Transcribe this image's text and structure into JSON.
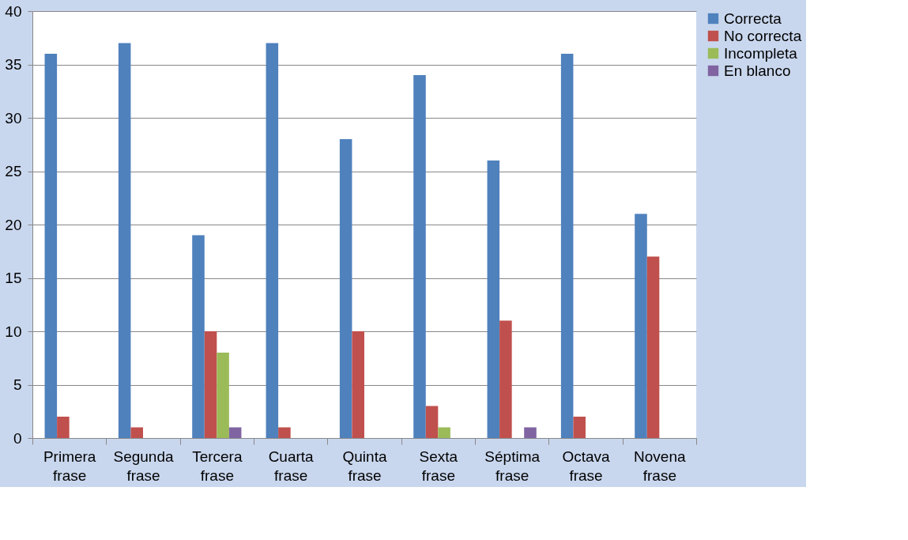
{
  "chart_data": {
    "type": "bar",
    "categories": [
      "Primera frase",
      "Segunda frase",
      "Tercera frase",
      "Cuarta frase",
      "Quinta frase",
      "Sexta frase",
      "Séptima frase",
      "Octava frase",
      "Novena frase"
    ],
    "series": [
      {
        "name": "Correcta",
        "color": "#4f81bd",
        "values": [
          36,
          37,
          19,
          37,
          28,
          34,
          26,
          36,
          21
        ]
      },
      {
        "name": "No correcta",
        "color": "#c0504d",
        "values": [
          2,
          1,
          10,
          1,
          10,
          3,
          11,
          2,
          17
        ]
      },
      {
        "name": "Incompleta",
        "color": "#9bbb59",
        "values": [
          0,
          0,
          8,
          0,
          0,
          1,
          0,
          0,
          0
        ]
      },
      {
        "name": "En blanco",
        "color": "#8064a2",
        "values": [
          0,
          0,
          1,
          0,
          0,
          0,
          1,
          0,
          0
        ]
      }
    ],
    "ylim": [
      0,
      40
    ],
    "yticks": [
      0,
      5,
      10,
      15,
      20,
      25,
      30,
      35,
      40
    ],
    "grid": "y",
    "legend": "right"
  }
}
